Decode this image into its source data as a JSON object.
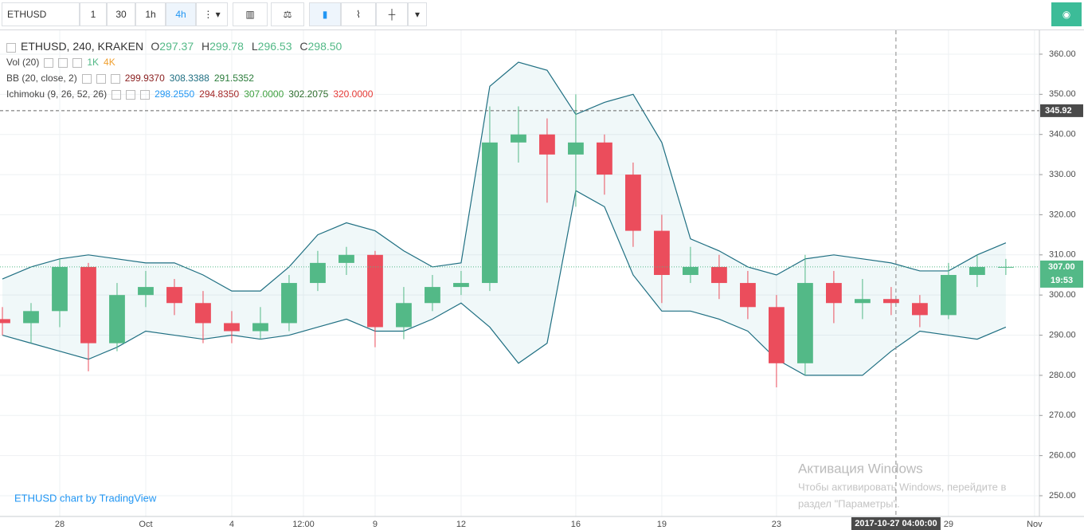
{
  "toolbar": {
    "symbol": "ETHUSD",
    "intervals": [
      "1",
      "30",
      "1h",
      "4h"
    ],
    "active_interval": "4h"
  },
  "chart_data": {
    "type": "candlestick",
    "title": "ETHUSD, 240, KRAKEN",
    "legend": {
      "ohlc": [
        {
          "key": "O",
          "value": 297.37
        },
        {
          "key": "H",
          "value": 299.78
        },
        {
          "key": "L",
          "value": 296.53
        },
        {
          "key": "C",
          "value": 298.5,
          "label": "298.50"
        }
      ],
      "volume": {
        "name": "Vol (20)",
        "labels": [
          "1K",
          "4K"
        ]
      },
      "bb": {
        "name": "BB (20, close, 2)",
        "values": [
          {
            "value": 299.937,
            "label": "299.9370"
          },
          308.3388,
          291.5352
        ]
      },
      "ichimoku": {
        "name": "Ichimoku (9, 26, 52, 26)",
        "values": [
          {
            "value": 298.255,
            "label": "298.2550"
          },
          {
            "value": 294.835,
            "label": "294.8350"
          },
          {
            "value": 307,
            "label": "307.0000"
          },
          {
            "value": 302.2075,
            "label": "302.2075"
          },
          {
            "value": 320,
            "label": "320.0000"
          }
        ]
      }
    },
    "x": [
      -2,
      -1,
      0,
      1,
      2,
      3,
      4,
      5,
      6,
      7,
      8,
      9,
      10,
      11,
      12,
      13,
      14,
      15,
      16,
      17,
      18,
      19,
      20,
      21,
      22,
      23,
      24,
      25,
      26,
      27,
      28,
      29,
      30,
      31,
      32,
      33
    ],
    "open": [
      294,
      293,
      296,
      307,
      288,
      300,
      302,
      298,
      293,
      291,
      293,
      303,
      308,
      310,
      292,
      298,
      302,
      303,
      338,
      340,
      335,
      338,
      330,
      316,
      305,
      307,
      303,
      297,
      283,
      303,
      298,
      299,
      298,
      295,
      305,
      307
    ],
    "high": [
      297,
      298,
      309,
      308,
      303,
      306,
      304,
      301,
      296,
      297,
      305,
      311,
      312,
      311,
      302,
      305,
      306,
      347,
      347,
      344,
      350,
      340,
      333,
      320,
      312,
      310,
      306,
      300,
      310,
      306,
      304,
      302,
      300,
      308,
      310,
      309
    ],
    "low": [
      290,
      288,
      292,
      281,
      286,
      297,
      295,
      288,
      288,
      289,
      291,
      301,
      305,
      287,
      289,
      296,
      300,
      301,
      333,
      323,
      322,
      325,
      312,
      298,
      303,
      299,
      294,
      277,
      280,
      293,
      294,
      295,
      292,
      294,
      302,
      305
    ],
    "close": [
      293,
      296,
      307,
      288,
      300,
      302,
      298,
      293,
      291,
      293,
      303,
      308,
      310,
      292,
      298,
      302,
      303,
      338,
      340,
      335,
      338,
      330,
      316,
      305,
      307,
      303,
      297,
      283,
      303,
      298,
      299,
      298,
      295,
      305,
      307,
      307
    ],
    "up_color": "#53b987",
    "down_color": "#eb4d5c",
    "bollinger": {
      "color": "#1f6f82",
      "upper": [
        304,
        307,
        309,
        310,
        309,
        308,
        308,
        305,
        301,
        301,
        307,
        315,
        318,
        316,
        311,
        307,
        308,
        352,
        358,
        356,
        345,
        348,
        350,
        338,
        314,
        311,
        307,
        305,
        309,
        310,
        309,
        308,
        306,
        306,
        310,
        313
      ],
      "lower": [
        290,
        288,
        286,
        284,
        287,
        291,
        290,
        289,
        290,
        289,
        290,
        292,
        294,
        291,
        291,
        294,
        298,
        292,
        283,
        288,
        326,
        322,
        305,
        296,
        296,
        294,
        291,
        284,
        280,
        280,
        280,
        286,
        291,
        290,
        289,
        292
      ]
    },
    "xlim": [
      -2.083,
      34.17
    ],
    "xticks": [
      {
        "value": 0,
        "label": "28"
      },
      {
        "value": 3,
        "label": "Oct"
      },
      {
        "value": 6,
        "label": "4"
      },
      {
        "value": 8.5,
        "label": "12:00"
      },
      {
        "value": 11,
        "label": "9"
      },
      {
        "value": 14,
        "label": "12"
      },
      {
        "value": 18,
        "label": "16"
      },
      {
        "value": 21,
        "label": "19"
      },
      {
        "value": 25,
        "label": "23"
      },
      {
        "value": 31,
        "label": "29"
      },
      {
        "value": 34,
        "label": "Nov"
      }
    ],
    "ylim": [
      244.84,
      365.95
    ],
    "yticks": [
      {
        "value": 250,
        "label": "250.00"
      },
      {
        "value": 260,
        "label": "260.00"
      },
      {
        "value": 270,
        "label": "270.00"
      },
      {
        "value": 280,
        "label": "280.00"
      },
      {
        "value": 290,
        "label": "290.00"
      },
      {
        "value": 300,
        "label": "300.00"
      },
      {
        "value": 310,
        "label": "310.00"
      },
      {
        "value": 320,
        "label": "320.00"
      },
      {
        "value": 330,
        "label": "330.00"
      },
      {
        "value": 340,
        "label": "340.00"
      },
      {
        "value": 350,
        "label": "350.00"
      },
      {
        "value": 360,
        "label": "360.00"
      }
    ],
    "grid": true,
    "price_line": 345.92,
    "last_price": {
      "value": 307,
      "label": "307.00"
    },
    "countdown": "19:53",
    "crosshair": {
      "x": 29.1667,
      "label": "2017-10-27 04:00:00"
    },
    "attribution": "ETHUSD chart by TradingView"
  },
  "watermark": {
    "title": "Активация Windows",
    "line1": "Чтобы активировать Windows, перейдите в",
    "line2": "раздел \"Параметры\"."
  }
}
